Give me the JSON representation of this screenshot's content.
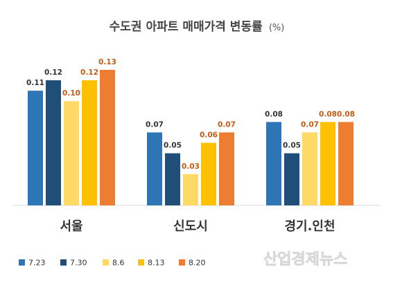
{
  "chart_data": {
    "type": "bar",
    "title": "수도권 아파트 매매가격 변동률",
    "title_unit": "(%)",
    "categories": [
      "서울",
      "신도시",
      "경기.인천"
    ],
    "series": [
      {
        "name": "7.23",
        "color": "#2e75b6",
        "label_color": "#333333",
        "values": [
          0.11,
          0.07,
          0.08
        ],
        "labels": [
          "0.11",
          "0.07",
          "0.08"
        ]
      },
      {
        "name": "7.30",
        "color": "#1f4e79",
        "label_color": "#333333",
        "values": [
          0.12,
          0.05,
          0.05
        ],
        "labels": [
          "0.12",
          "0.05",
          "0.05"
        ]
      },
      {
        "name": "8.6",
        "color": "#ffd966",
        "label_color": "#c55a11",
        "values": [
          0.1,
          0.03,
          0.07
        ],
        "labels": [
          "0.10",
          "0.03",
          "0.07"
        ]
      },
      {
        "name": "8.13",
        "color": "#ffc000",
        "label_color": "#c55a11",
        "values": [
          0.12,
          0.06,
          0.08
        ],
        "labels": [
          "0.12",
          "0.06",
          "0.08"
        ]
      },
      {
        "name": "8.20",
        "color": "#ed7d31",
        "label_color": "#c55a11",
        "values": [
          0.13,
          0.07,
          0.08
        ],
        "labels": [
          "0.13",
          "0.07",
          "0.08"
        ]
      }
    ],
    "ylim": [
      0,
      0.13
    ],
    "legend_position": "bottom-left",
    "grid": false
  },
  "watermark": "산업경제뉴스"
}
